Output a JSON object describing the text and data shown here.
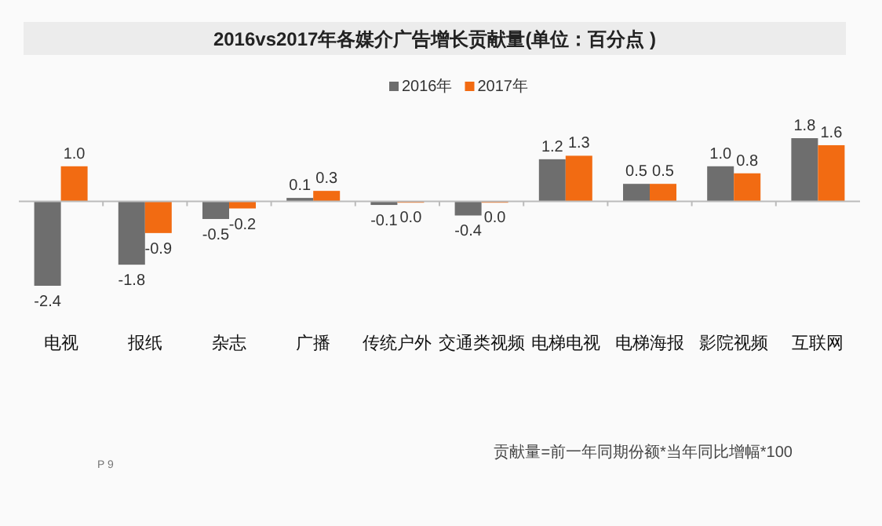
{
  "chart_data": {
    "type": "bar",
    "title": "2016vs2017年各媒介广告增长贡献量(单位：百分点 )",
    "categories": [
      "电视",
      "报纸",
      "杂志",
      "广播",
      "传统户外",
      "交通类视频",
      "电梯电视",
      "电梯海报",
      "影院视频",
      "互联网"
    ],
    "series": [
      {
        "name": "2016年",
        "color": "#6e6e6e",
        "values": [
          -2.4,
          -1.8,
          -0.5,
          0.1,
          -0.1,
          -0.4,
          1.2,
          0.5,
          1.0,
          1.8
        ],
        "value_labels": [
          "-2.4",
          "-1.8",
          "-0.5",
          "0.1",
          "-0.1",
          "-0.4",
          "1.2",
          "0.5",
          "1.0",
          "1.8"
        ]
      },
      {
        "name": "2017年",
        "color": "#f26b12",
        "values": [
          1.0,
          -0.9,
          -0.2,
          0.3,
          0.0,
          0.0,
          1.3,
          0.5,
          0.8,
          1.6
        ],
        "value_labels": [
          "1.0",
          "-0.9",
          "-0.2",
          "0.3",
          "0.0",
          "0.0",
          "1.3",
          "0.5",
          "0.8",
          "1.6"
        ]
      }
    ],
    "legend": "top",
    "annotations": [
      "贡献量=前一年同期份额*当年同比增幅*100",
      "P 9"
    ]
  }
}
